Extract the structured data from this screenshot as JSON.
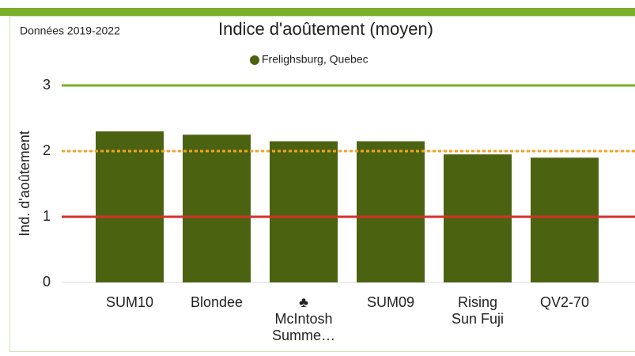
{
  "chart_data": {
    "type": "bar",
    "title": "Indice d'aoûtement (moyen)",
    "subtitle": "Données 2019-2022",
    "y_label": "Ind. d'aoûtement",
    "categories": [
      "SUM10",
      "Blondee",
      "♣\nMcIntosh\nSumme…",
      "SUM09",
      "Rising\nSun Fuji",
      "QV2-70"
    ],
    "series": [
      {
        "name": "Frelighsburg, Quebec",
        "color": "#4b6311",
        "values": [
          2.3,
          2.25,
          2.15,
          2.15,
          1.95,
          1.9
        ]
      }
    ],
    "ylim": [
      0,
      3
    ],
    "yticks": [
      0,
      1,
      2,
      3
    ],
    "reference_lines": [
      {
        "value": 3,
        "color": "#7aaf27",
        "style": "solid"
      },
      {
        "value": 2,
        "color": "#f2a51c",
        "style": "dotted"
      },
      {
        "value": 1,
        "color": "#d5302c",
        "style": "solid"
      }
    ],
    "legend": "top"
  }
}
